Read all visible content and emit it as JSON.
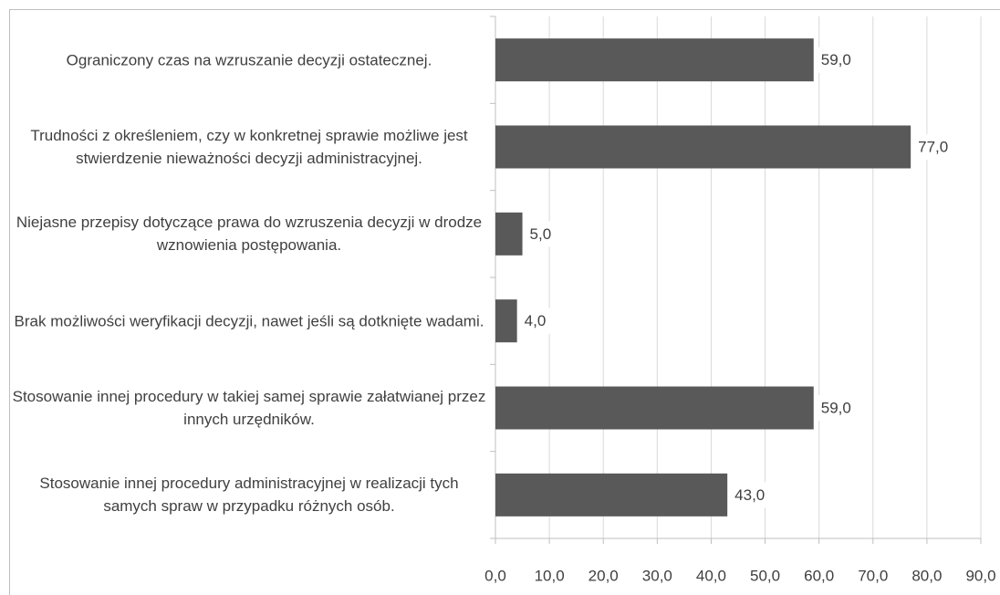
{
  "chart_data": {
    "type": "barh",
    "categories": [
      "Ograniczony czas na wzruszanie decyzji ostatecznej.",
      "Trudności z określeniem, czy w konkretnej sprawie możliwe jest stwierdzenie nieważności decyzji administracyjnej.",
      "Niejasne przepisy dotyczące prawa do wzruszenia decyzji w drodze wznowienia postępowania.",
      "Brak możliwości weryfikacji decyzji, nawet jeśli są dotknięte wadami.",
      "Stosowanie innej procedury w takiej samej sprawie załatwianej przez innych urzędników.",
      "Stosowanie innej procedury administracyjnej w realizacji tych samych spraw w przypadku różnych osób."
    ],
    "values": [
      59,
      77,
      5,
      4,
      59,
      43
    ],
    "value_labels": [
      "59,0",
      "77,0",
      "5,0",
      "4,0",
      "59,0",
      "43,0"
    ],
    "color": "#595959",
    "xlim": [
      0,
      90
    ],
    "xticks": [
      {
        "value": 0,
        "label": "0,0"
      },
      {
        "value": 10,
        "label": "10,0"
      },
      {
        "value": 20,
        "label": "20,0"
      },
      {
        "value": 30,
        "label": "30,0"
      },
      {
        "value": 40,
        "label": "40,0"
      },
      {
        "value": 50,
        "label": "50,0"
      },
      {
        "value": 60,
        "label": "60,0"
      },
      {
        "value": 70,
        "label": "70,0"
      },
      {
        "value": 80,
        "label": "80,0"
      },
      {
        "value": 90,
        "label": "90,0"
      }
    ],
    "grid": true
  }
}
